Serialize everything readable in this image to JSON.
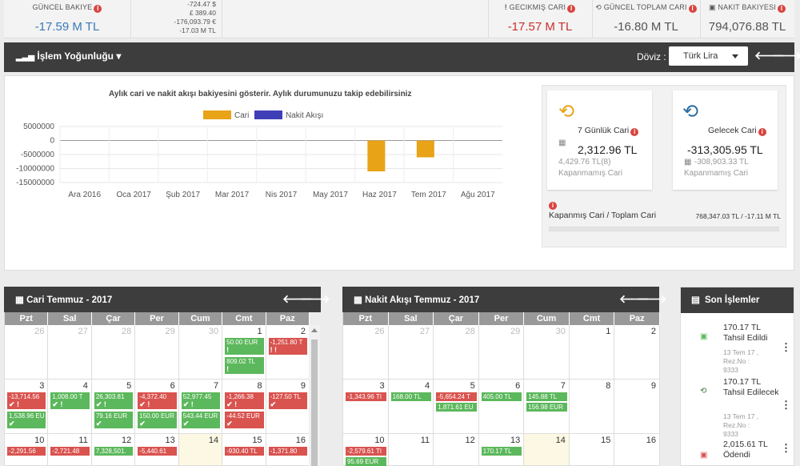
{
  "top": {
    "guncel_bakiye": {
      "label": "GÜNCEL BAKIYE",
      "value": "-17.59 M TL"
    },
    "currencies": [
      "-724.47 $",
      "£ 389.40",
      "-176,093.79 €",
      "-17.03 M TL"
    ],
    "gecikmis": {
      "label": "GECIKMIŞ CARI",
      "value": "-17.57 M TL"
    },
    "guncel_toplam": {
      "label": "GÜNCEL TOPLAM CARI",
      "value": "-16.80 M TL"
    },
    "nakit": {
      "label": "NAKIT BAKIYESI",
      "value": "794,076.88 TL"
    }
  },
  "toolbar": {
    "title": "İşlem Yoğunluğu",
    "doviz_label": "Döviz :",
    "currency_value": "Türk Lira",
    "prev": "🡐",
    "next": "🡒"
  },
  "chart_desc": "Aylık cari ve nakit akışı bakiyesini gösterir.  Aylık durumunuzu takip edebilirsiniz",
  "chart_data": {
    "type": "bar",
    "categories": [
      "Ara 2016",
      "Oca 2017",
      "Şub 2017",
      "Mar 2017",
      "Nis 2017",
      "May 2017",
      "Haz 2017",
      "Tem 2017",
      "Ağu 2017"
    ],
    "series": [
      {
        "name": "Cari",
        "color": "#e8a317",
        "values": [
          0,
          0,
          0,
          0,
          0,
          0,
          -11000000,
          -6000000,
          0
        ]
      },
      {
        "name": "Nakit Akışı",
        "color": "#3f3fb8",
        "values": [
          0,
          0,
          0,
          0,
          0,
          0,
          0,
          0,
          0
        ]
      }
    ],
    "yticks": [
      "5000000",
      "0",
      "-5000000",
      "-10000000",
      "-15000000"
    ],
    "ylim": [
      -15000000,
      5000000
    ]
  },
  "cards": {
    "yedi": {
      "title": "7 Günlük Cari",
      "value": "2,312.96 TL",
      "sub": "4,429.76 TL(8)",
      "sub2": "Kapanmamış Cari"
    },
    "gelecek": {
      "title": "Gelecek Cari",
      "value": "-313,305.95 TL",
      "sub": "-308,903.33 TL",
      "sub2": "Kapanmamış Cari"
    },
    "ratio_label": "Kapanmış Cari / Toplam Cari",
    "ratio_value": "768,347.03 TL / -17.11 M TL"
  },
  "cal1": {
    "title": "Cari Temmuz - 2017"
  },
  "cal2": {
    "title": "Nakit Akışı Temmuz - 2017"
  },
  "dow": [
    "Pzt",
    "Sal",
    "Çar",
    "Per",
    "Cum",
    "Cmt",
    "Paz"
  ],
  "weeks": [
    [
      {
        "d": "26",
        "m": true
      },
      {
        "d": "27",
        "m": true
      },
      {
        "d": "28",
        "m": true
      },
      {
        "d": "29",
        "m": true
      },
      {
        "d": "30",
        "m": true
      },
      {
        "d": "1"
      },
      {
        "d": "2"
      }
    ],
    [
      {
        "d": "3"
      },
      {
        "d": "4"
      },
      {
        "d": "5"
      },
      {
        "d": "6"
      },
      {
        "d": "7"
      },
      {
        "d": "8"
      },
      {
        "d": "9"
      }
    ],
    [
      {
        "d": "10"
      },
      {
        "d": "11"
      },
      {
        "d": "12"
      },
      {
        "d": "13"
      },
      {
        "d": "14",
        "t": true
      },
      {
        "d": "15"
      },
      {
        "d": "16"
      }
    ]
  ],
  "cal1_events": [
    [
      [],
      [],
      [],
      [],
      [],
      [
        {
          "c": "g",
          "txt": "50.00 EUR",
          "ic": "!"
        },
        {
          "c": "g",
          "txt": "809.02 TL",
          "ic": "!"
        }
      ],
      [
        {
          "c": "r",
          "txt": "-1,251.80 T",
          "ic": "! !"
        }
      ]
    ],
    [
      [
        {
          "c": "r",
          "txt": "-13,714.56",
          "ic": "✔ !"
        },
        {
          "c": "g",
          "txt": "1,538.96 EU",
          "ic": "✔"
        }
      ],
      [
        {
          "c": "g",
          "txt": "1,008.00 T",
          "ic": "✔ !"
        }
      ],
      [
        {
          "c": "g",
          "txt": "26,303.81",
          "ic": "✔ !"
        },
        {
          "c": "g",
          "txt": "79.16 EUR",
          "ic": "✔"
        }
      ],
      [
        {
          "c": "r",
          "txt": "-4,372.40",
          "ic": "✔ !"
        },
        {
          "c": "g",
          "txt": "150.00 EUR",
          "ic": "✔"
        }
      ],
      [
        {
          "c": "g",
          "txt": "52,977.45",
          "ic": "✔ !"
        },
        {
          "c": "g",
          "txt": "543.44 EUR",
          "ic": "✔"
        }
      ],
      [
        {
          "c": "r",
          "txt": "-1,266.38",
          "ic": "✔ !"
        },
        {
          "c": "r",
          "txt": "-44.52 EUR",
          "ic": "✔"
        }
      ],
      [
        {
          "c": "r",
          "txt": "-127.50 TL",
          "ic": "✔"
        }
      ]
    ],
    [
      [
        {
          "c": "r",
          "txt": "-2,291.56",
          "ic": ""
        }
      ],
      [
        {
          "c": "r",
          "txt": "-2,721.48",
          "ic": ""
        }
      ],
      [
        {
          "c": "g",
          "txt": "7,328,501.",
          "ic": ""
        }
      ],
      [
        {
          "c": "r",
          "txt": "-5,440.61",
          "ic": ""
        }
      ],
      [],
      [
        {
          "c": "r",
          "txt": "-930.40 TL",
          "ic": ""
        }
      ],
      [
        {
          "c": "r",
          "txt": "-1,371.80",
          "ic": ""
        }
      ]
    ]
  ],
  "cal2_events": [
    [
      [],
      [],
      [],
      [],
      [],
      [],
      []
    ],
    [
      [
        {
          "c": "r",
          "txt": "-1,343.96 TI"
        }
      ],
      [
        {
          "c": "g",
          "txt": "168.00 TL"
        }
      ],
      [
        {
          "c": "r",
          "txt": "-5,654.24 T"
        },
        {
          "c": "g",
          "txt": "1,871.61 EU"
        }
      ],
      [
        {
          "c": "g",
          "txt": "405.00 TL"
        }
      ],
      [
        {
          "c": "g",
          "txt": "145.88 TL"
        },
        {
          "c": "g",
          "txt": "156.98 EUR"
        }
      ],
      [],
      []
    ],
    [
      [
        {
          "c": "r",
          "txt": "-2,579.61 TI"
        },
        {
          "c": "g",
          "txt": "95.69 EUR"
        }
      ],
      [],
      [],
      [
        {
          "c": "g",
          "txt": "170.17 TL"
        }
      ],
      [],
      [],
      []
    ]
  ],
  "recent": {
    "title": "Son İşlemler",
    "items": [
      {
        "amt": "170.17 TL",
        "desc": "Tahsil Edildi",
        "meta1": "13 Tem 17 ,",
        "meta2": "Rez.No :",
        "meta3": "9333",
        "icon": "money-icon"
      },
      {
        "amt": "170.17 TL",
        "desc": "Tahsil Edilecek",
        "meta1": "13 Tem 17 ,",
        "meta2": "Rez.No :",
        "meta3": "9333",
        "icon": "history-icon"
      },
      {
        "amt": "2,015.61 TL",
        "desc": "Ödendi",
        "icon": "money-icon"
      }
    ]
  }
}
